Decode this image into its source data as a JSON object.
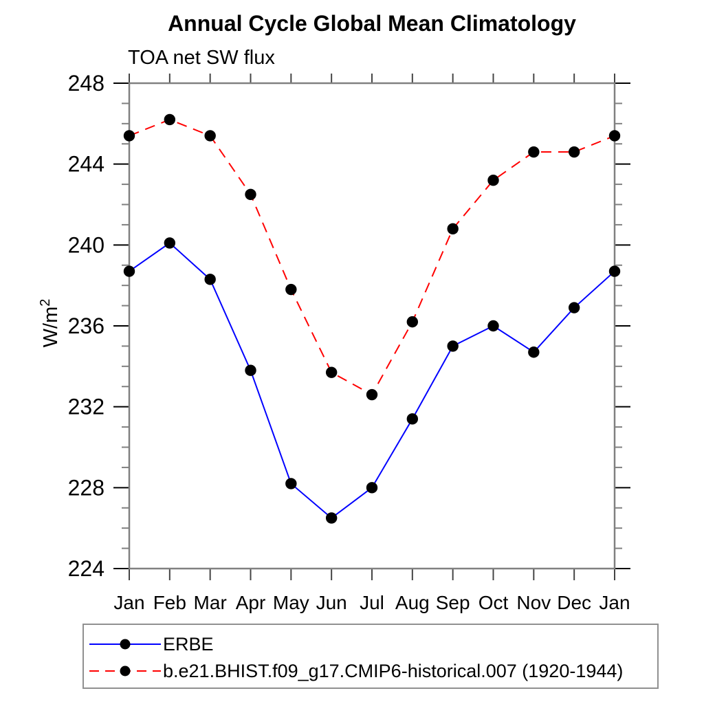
{
  "page": {
    "background": "#ffffff"
  },
  "chart_data": {
    "type": "line",
    "title": "Annual Cycle Global Mean Climatology",
    "subtitle": "TOA net SW flux",
    "ylabel": "W/m²",
    "ylabel_base": "W/m",
    "ylabel_exponent": "2",
    "xlabel": "",
    "categories": [
      "Jan",
      "Feb",
      "Mar",
      "Apr",
      "May",
      "Jun",
      "Jul",
      "Aug",
      "Sep",
      "Oct",
      "Nov",
      "Dec",
      "Jan"
    ],
    "ylim": [
      224,
      248
    ],
    "ytick_major": [
      224,
      228,
      232,
      236,
      240,
      244,
      248
    ],
    "ytick_minor_step": 1,
    "grid": false,
    "legend_position": "bottom-left-box",
    "series": [
      {
        "name": "ERBE",
        "line_style": "solid",
        "color": "#0000ff",
        "marker": "filled-circle",
        "marker_color": "#000000",
        "values": [
          238.7,
          240.1,
          238.3,
          233.8,
          228.2,
          226.5,
          228.0,
          231.4,
          235.0,
          236.0,
          234.7,
          236.9,
          238.7
        ]
      },
      {
        "name": "b.e21.BHIST.f09_g17.CMIP6-historical.007 (1920-1944)",
        "line_style": "dashed",
        "color": "#ff0000",
        "marker": "filled-circle",
        "marker_color": "#000000",
        "values": [
          245.4,
          246.2,
          245.4,
          242.5,
          237.8,
          233.7,
          232.6,
          236.2,
          240.8,
          243.2,
          244.6,
          244.6,
          245.4
        ]
      }
    ]
  },
  "style_colors": {
    "axis_frame": "#808080",
    "major_tick": "#000000",
    "minor_tick": "#808080",
    "month_tick": "#444444",
    "text": "#000000",
    "legend_border": "#909090"
  }
}
